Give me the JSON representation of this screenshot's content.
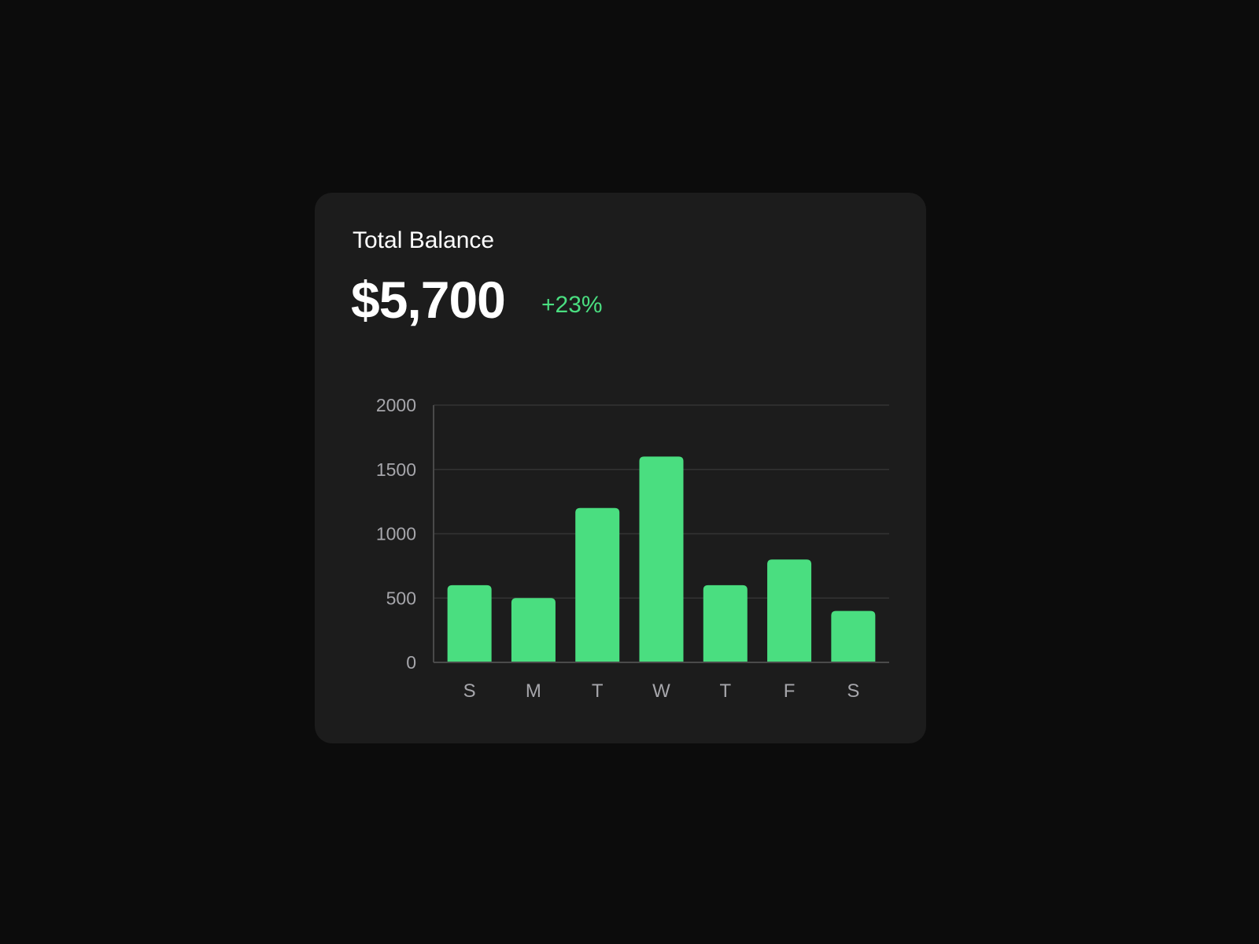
{
  "card": {
    "title": "Total Balance",
    "amount": "$5,700",
    "change": "+23%"
  },
  "colors": {
    "background": "#0c0c0c",
    "card": "#1c1c1c",
    "accent": "#4ade80",
    "gridline": "#333333",
    "axis_text": "#a6a6ab"
  },
  "chart_data": {
    "type": "bar",
    "categories": [
      "S",
      "M",
      "T",
      "W",
      "T",
      "F",
      "S"
    ],
    "values": [
      600,
      500,
      1200,
      1600,
      600,
      800,
      400
    ],
    "yticks": [
      0,
      500,
      1000,
      1500,
      2000
    ],
    "ylim": [
      0,
      2000
    ],
    "grid": true,
    "title": "",
    "xlabel": "",
    "ylabel": ""
  }
}
